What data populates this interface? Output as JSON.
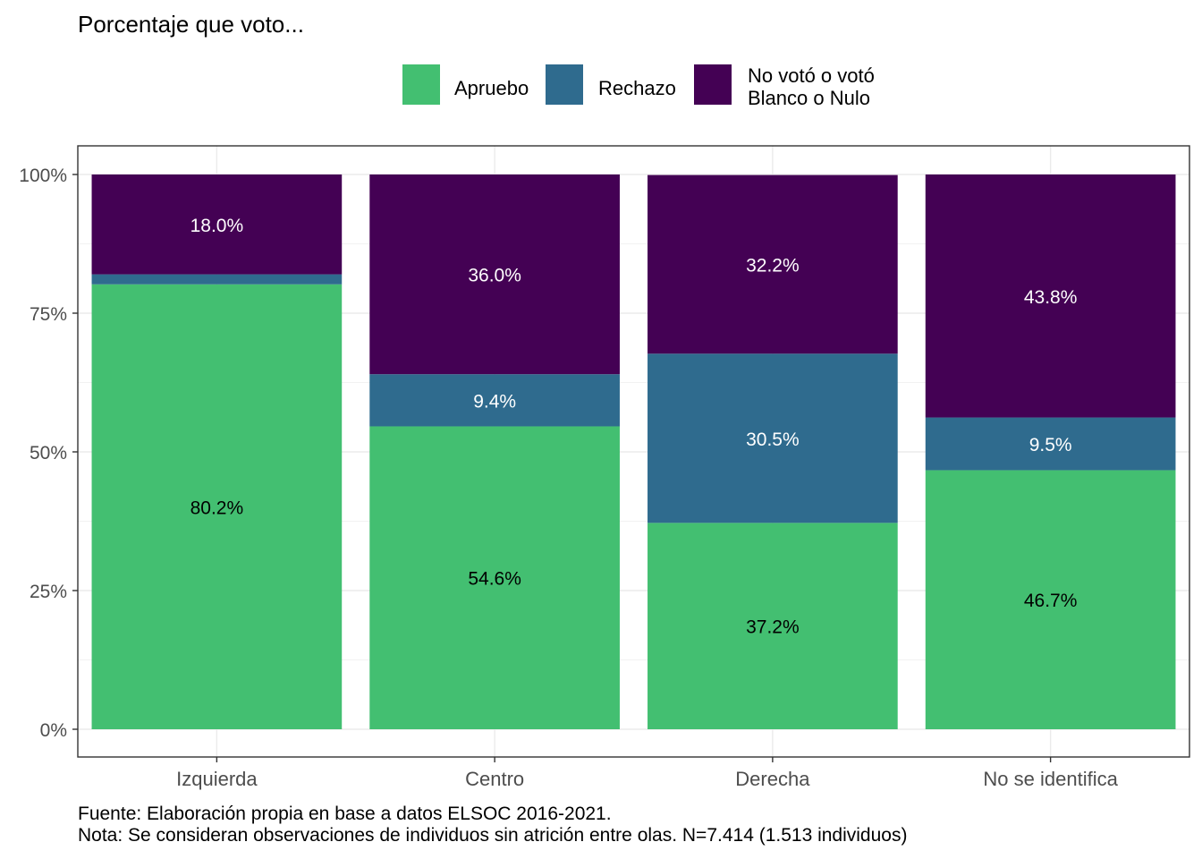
{
  "chart_data": {
    "type": "bar",
    "stacked": true,
    "title": "Porcentaje que voto...",
    "xlabel": "",
    "ylabel": "",
    "ylim": [
      0,
      100
    ],
    "y_ticks": [
      "0%",
      "25%",
      "50%",
      "75%",
      "100%"
    ],
    "y_tick_values": [
      0,
      25,
      50,
      75,
      100
    ],
    "categories": [
      "Izquierda",
      "Centro",
      "Derecha",
      "No se identifica"
    ],
    "legend_position": "top",
    "grid": true,
    "series": [
      {
        "name": "Apruebo",
        "color": "#43bf71",
        "label_color": "#000000",
        "values": [
          80.2,
          54.6,
          37.2,
          46.7
        ],
        "labels": [
          "80.2%",
          "54.6%",
          "37.2%",
          "46.7%"
        ]
      },
      {
        "name": "Rechazo",
        "color": "#2f6b8e",
        "label_color": "#ffffff",
        "values": [
          1.8,
          9.4,
          30.5,
          9.5
        ],
        "labels": [
          "",
          "9.4%",
          "30.5%",
          "9.5%"
        ]
      },
      {
        "name": "No votó o votó\nBlanco o Nulo",
        "color": "#440154",
        "label_color": "#ffffff",
        "values": [
          18.0,
          36.0,
          32.2,
          43.8
        ],
        "labels": [
          "18.0%",
          "36.0%",
          "32.2%",
          "43.8%"
        ]
      }
    ]
  },
  "captions": {
    "source": "Fuente: Elaboración propia en base a datos ELSOC 2016-2021.",
    "note": "Nota: Se consideran observaciones de individuos sin atrición entre olas. N=7.414 (1.513 individuos)"
  }
}
